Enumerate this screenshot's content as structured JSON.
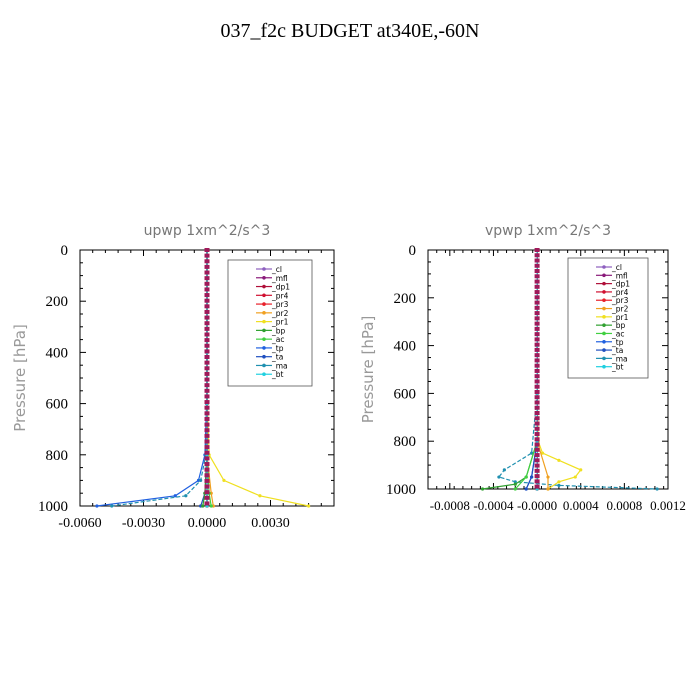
{
  "figure": {
    "title": "037_f2c  BUDGET at340E,-60N"
  },
  "colors": {
    "_cl": "#8e5fbf",
    "_mfl": "#8a1a7a",
    "_dp1": "#b0103a",
    "_pr4": "#d01030",
    "_pr3": "#e8202a",
    "_pr2": "#f0a020",
    "_pr1": "#f0e020",
    "_bp": "#30a030",
    "_ac": "#40d040",
    "_tp": "#2060e0",
    "_ta": "#2050c0",
    "_ma": "#2090b0",
    "_bt": "#20d0e0"
  },
  "chart_data": [
    {
      "type": "line",
      "title": "upwp   1xm^2/s^3",
      "xlabel": "",
      "ylabel": "Pressure [hPa]",
      "xlim": [
        -0.006,
        0.006
      ],
      "ylim": [
        1000,
        0
      ],
      "xticks": [
        "-0.0060",
        "-0.0030",
        "0.0000",
        "0.0030"
      ],
      "xtick_values": [
        -0.006,
        -0.003,
        0.0,
        0.003
      ],
      "yticks": [
        "0",
        "200",
        "400",
        "600",
        "800",
        "1000"
      ],
      "ytick_values": [
        0,
        200,
        400,
        600,
        800,
        1000
      ],
      "legend": [
        "_cl",
        "_mfl",
        "_dp1",
        "_pr4",
        "_pr3",
        "_pr2",
        "_pr1",
        "_bp",
        "_ac",
        "_tp",
        "_ta",
        "_ma",
        "_bt"
      ],
      "legend_position": "top-right",
      "series": [
        {
          "name": "_cl",
          "x": [
            0,
            0,
            0,
            0,
            0,
            0,
            0
          ],
          "y": [
            0,
            200,
            400,
            600,
            800,
            950,
            1000
          ]
        },
        {
          "name": "_mfl",
          "x": [
            0,
            0,
            0,
            0,
            0,
            0,
            0
          ],
          "y": [
            0,
            200,
            400,
            600,
            800,
            950,
            1000
          ]
        },
        {
          "name": "_dp1",
          "x": [
            0,
            0,
            0,
            0,
            0,
            0,
            0
          ],
          "y": [
            0,
            200,
            400,
            600,
            800,
            950,
            1000
          ]
        },
        {
          "name": "_pr4",
          "x": [
            0,
            0,
            0,
            0,
            0,
            0,
            0
          ],
          "y": [
            0,
            200,
            400,
            600,
            800,
            950,
            1000
          ]
        },
        {
          "name": "_pr3",
          "x": [
            0,
            0,
            0,
            0,
            0,
            0,
            0
          ],
          "y": [
            0,
            200,
            400,
            600,
            800,
            950,
            1000
          ]
        },
        {
          "name": "_pr2",
          "x": [
            0,
            0,
            0,
            0,
            0,
            0.0002,
            0.0003
          ],
          "y": [
            0,
            200,
            400,
            600,
            800,
            950,
            1000
          ]
        },
        {
          "name": "_pr1",
          "x": [
            0,
            0,
            0,
            2e-05,
            0.0001,
            0.0008,
            0.0025,
            0.0048
          ],
          "y": [
            0,
            200,
            400,
            600,
            800,
            900,
            960,
            1000
          ]
        },
        {
          "name": "_bp",
          "x": [
            0,
            0,
            0,
            0,
            0,
            -0.0001,
            -0.0002
          ],
          "y": [
            0,
            200,
            400,
            600,
            800,
            950,
            1000
          ]
        },
        {
          "name": "_ac",
          "x": [
            0,
            0,
            0,
            0,
            0,
            0.0001,
            0.0002
          ],
          "y": [
            0,
            200,
            400,
            600,
            800,
            950,
            1000
          ]
        },
        {
          "name": "_tp",
          "x": [
            0,
            0,
            0,
            -2e-05,
            -0.0001,
            -0.0004,
            -0.0015,
            -0.0052
          ],
          "y": [
            0,
            200,
            400,
            600,
            800,
            900,
            960,
            1000
          ]
        },
        {
          "name": "_ta",
          "x": [
            0,
            0,
            0,
            0,
            0,
            -0.0001,
            -0.0003
          ],
          "y": [
            0,
            200,
            400,
            600,
            800,
            950,
            1000
          ]
        },
        {
          "name": "_ma",
          "x": [
            0,
            0,
            0,
            0,
            -5e-05,
            -0.0003,
            -0.001,
            -0.0045
          ],
          "y": [
            0,
            200,
            400,
            600,
            800,
            900,
            960,
            1000
          ]
        },
        {
          "name": "_bt",
          "x": [
            0,
            0,
            0,
            0,
            0,
            0,
            0
          ],
          "y": [
            0,
            200,
            400,
            600,
            800,
            950,
            1000
          ]
        }
      ]
    },
    {
      "type": "line",
      "title": "vpwp   1xm^2/s^3",
      "xlabel": "",
      "ylabel": "Pressure [hPa]",
      "xlim": [
        -0.001,
        0.0012
      ],
      "ylim": [
        1000,
        0
      ],
      "xticks": [
        "-0.0008",
        "-0.0004",
        "-0.0000",
        "0.0004",
        "0.0008",
        "0.0012"
      ],
      "xtick_values": [
        -0.0008,
        -0.0004,
        0.0,
        0.0004,
        0.0008,
        0.0012
      ],
      "yticks": [
        "0",
        "200",
        "400",
        "600",
        "800",
        "1000"
      ],
      "ytick_values": [
        0,
        200,
        400,
        600,
        800,
        1000
      ],
      "legend": [
        "_cl",
        "_mfl",
        "_dp1",
        "_pr4",
        "_pr3",
        "_pr2",
        "_pr1",
        "_bp",
        "_ac",
        "_tp",
        "_ta",
        "_ma",
        "_bt"
      ],
      "legend_position": "top-right",
      "series": [
        {
          "name": "_cl",
          "x": [
            0,
            0,
            0,
            0,
            0,
            0,
            0
          ],
          "y": [
            0,
            200,
            400,
            600,
            800,
            950,
            1000
          ]
        },
        {
          "name": "_mfl",
          "x": [
            0,
            0,
            0,
            0,
            0,
            0,
            0
          ],
          "y": [
            0,
            200,
            400,
            600,
            800,
            950,
            1000
          ]
        },
        {
          "name": "_dp1",
          "x": [
            0,
            0,
            0,
            0,
            0,
            0,
            0
          ],
          "y": [
            0,
            200,
            400,
            600,
            800,
            950,
            1000
          ]
        },
        {
          "name": "_pr4",
          "x": [
            0,
            0,
            0,
            0,
            0,
            0,
            0
          ],
          "y": [
            0,
            200,
            400,
            600,
            800,
            950,
            1000
          ]
        },
        {
          "name": "_pr3",
          "x": [
            0,
            0,
            0,
            0,
            0,
            0,
            0
          ],
          "y": [
            0,
            200,
            400,
            600,
            800,
            950,
            1000
          ]
        },
        {
          "name": "_pr2",
          "x": [
            0,
            0,
            0,
            0,
            0,
            0.0001,
            0.0001
          ],
          "y": [
            0,
            200,
            400,
            600,
            800,
            950,
            1000
          ]
        },
        {
          "name": "_pr1",
          "x": [
            0,
            0,
            0,
            0,
            1e-05,
            5e-05,
            0.0002,
            0.0004,
            0.00035,
            0.0002,
            0.0001
          ],
          "y": [
            0,
            200,
            400,
            600,
            800,
            850,
            880,
            920,
            950,
            970,
            1000
          ]
        },
        {
          "name": "_bp",
          "x": [
            0,
            0,
            0,
            0,
            0,
            -0.0001,
            -0.0002,
            -0.0005
          ],
          "y": [
            0,
            200,
            400,
            600,
            800,
            950,
            980,
            1000
          ]
        },
        {
          "name": "_ac",
          "x": [
            0,
            0,
            0,
            0,
            0,
            -0.0001,
            -0.0002
          ],
          "y": [
            0,
            200,
            400,
            600,
            800,
            950,
            1000
          ]
        },
        {
          "name": "_tp",
          "x": [
            0,
            0,
            0,
            0,
            0,
            -5e-05,
            -0.0001
          ],
          "y": [
            0,
            200,
            400,
            600,
            800,
            950,
            1000
          ]
        },
        {
          "name": "_ta",
          "x": [
            0,
            0,
            0,
            0,
            0,
            -5e-05,
            -0.0001
          ],
          "y": [
            0,
            200,
            400,
            600,
            800,
            950,
            1000
          ]
        },
        {
          "name": "_ma",
          "x": [
            0,
            0,
            0,
            0,
            -5e-05,
            -0.0003,
            -0.00035,
            -0.0002,
            0.0002,
            0.0011
          ],
          "y": [
            0,
            200,
            400,
            600,
            850,
            920,
            950,
            970,
            985,
            1000
          ]
        },
        {
          "name": "_bt",
          "x": [
            0,
            0,
            0,
            0,
            0,
            0,
            0
          ],
          "y": [
            0,
            200,
            400,
            600,
            800,
            950,
            1000
          ]
        }
      ]
    }
  ]
}
